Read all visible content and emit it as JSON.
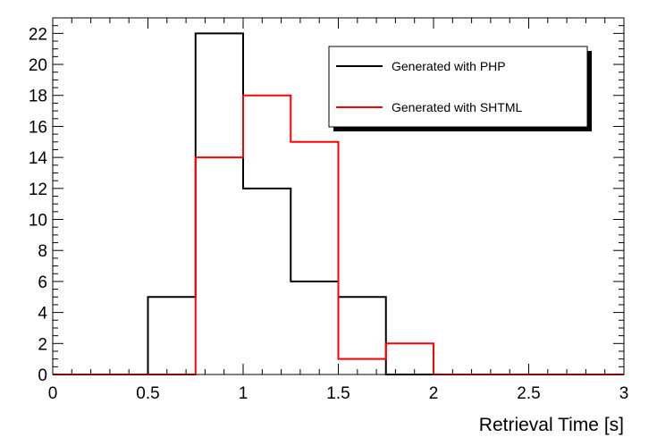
{
  "chart_data": {
    "type": "histogram",
    "xlabel": "Retrieval Time [s]",
    "ylabel": "",
    "xlim": [
      0,
      3
    ],
    "ylim": [
      0,
      23
    ],
    "bin_width": 0.25,
    "bins": [
      0,
      0.25,
      0.5,
      0.75,
      1.0,
      1.25,
      1.5,
      1.75,
      2.0,
      2.25,
      2.5,
      2.75,
      3.0
    ],
    "series": [
      {
        "name": "Generated with PHP",
        "color": "#000000",
        "values": [
          0,
          0,
          5,
          22,
          12,
          6,
          5,
          0,
          0,
          0,
          0,
          0
        ]
      },
      {
        "name": "Generated with SHTML",
        "color": "#ff0000",
        "values": [
          0,
          0,
          0,
          14,
          18,
          15,
          1,
          2,
          0,
          0,
          0,
          0
        ]
      }
    ],
    "x_tick_labels": [
      "0",
      "0.5",
      "1",
      "1.5",
      "2",
      "2.5",
      "3"
    ],
    "y_tick_labels": [
      "0",
      "2",
      "4",
      "6",
      "8",
      "10",
      "12",
      "14",
      "16",
      "18",
      "20",
      "22"
    ],
    "legend_position": "top-right",
    "grid": false
  }
}
